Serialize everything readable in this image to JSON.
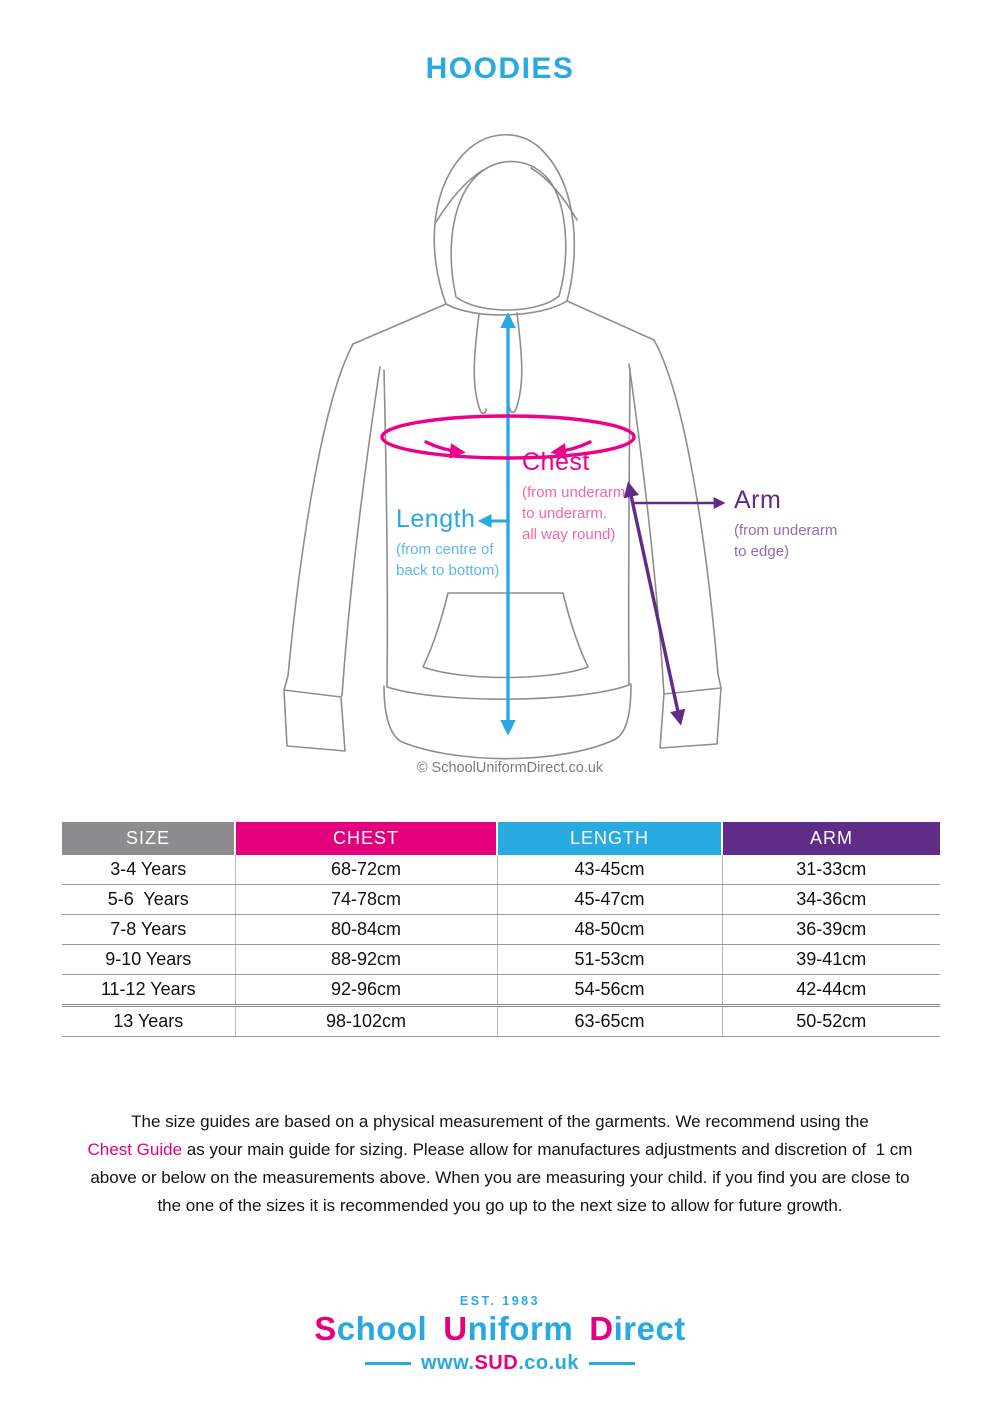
{
  "title": "HOODIES",
  "colors": {
    "blue": "#29A9E1",
    "pink": "#E6007E",
    "bright_pink": "#EC008C",
    "purple": "#5F2C87",
    "gray": "#8C8C8E"
  },
  "diagram": {
    "chest": {
      "title": "Chest",
      "desc": [
        "(from underarm",
        "to underarm.",
        "all way round)"
      ]
    },
    "length": {
      "title": "Length",
      "desc": [
        "(from centre of",
        "back to bottom)"
      ]
    },
    "arm": {
      "title": "Arm",
      "desc": [
        "(from underarm",
        "to edge)"
      ]
    },
    "copyright": "© SchoolUniformDirect.co.uk"
  },
  "table": {
    "headers": [
      {
        "label": "SIZE",
        "color": "#8C8C8E"
      },
      {
        "label": "CHEST",
        "color": "#E3007D"
      },
      {
        "label": "LENGTH",
        "color": "#29ABE2"
      },
      {
        "label": "ARM",
        "color": "#5F2C87"
      }
    ],
    "rows": [
      [
        "3-4 Years",
        "68-72cm",
        "43-45cm",
        "31-33cm"
      ],
      [
        "5-6  Years",
        "74-78cm",
        "45-47cm",
        "34-36cm"
      ],
      [
        "7-8 Years",
        "80-84cm",
        "48-50cm",
        "36-39cm"
      ],
      [
        "9-10 Years",
        "88-92cm",
        "51-53cm",
        "39-41cm"
      ],
      [
        "11-12 Years",
        "92-96cm",
        "54-56cm",
        "42-44cm"
      ],
      [
        "13 Years",
        "98-102cm",
        "63-65cm",
        "50-52cm"
      ]
    ]
  },
  "note": {
    "lines": [
      [
        {
          "t": "The size guides are based on a physical measurement of the garments. We recommend using the"
        }
      ],
      [
        {
          "t": "Chest Guide",
          "highlight": true
        },
        {
          "t": " as your main guide for sizing. Please allow for manufactures adjustments and discretion of  1 cm"
        }
      ],
      [
        {
          "t": "above or below on the measurements above. When you are measuring your child. if you find you are close to"
        }
      ],
      [
        {
          "t": "the one of the sizes it is recommended you go up to the next size to allow for future growth."
        }
      ]
    ]
  },
  "footer": {
    "est": "EST. 1983",
    "words": [
      {
        "first": "S",
        "rest": "chool"
      },
      {
        "first": "U",
        "rest": "niform"
      },
      {
        "first": "D",
        "rest": "irect"
      }
    ],
    "url_parts": [
      {
        "text": "www.",
        "pink": false
      },
      {
        "text": "SUD",
        "pink": true
      },
      {
        "text": ".co.uk",
        "pink": false
      }
    ]
  }
}
